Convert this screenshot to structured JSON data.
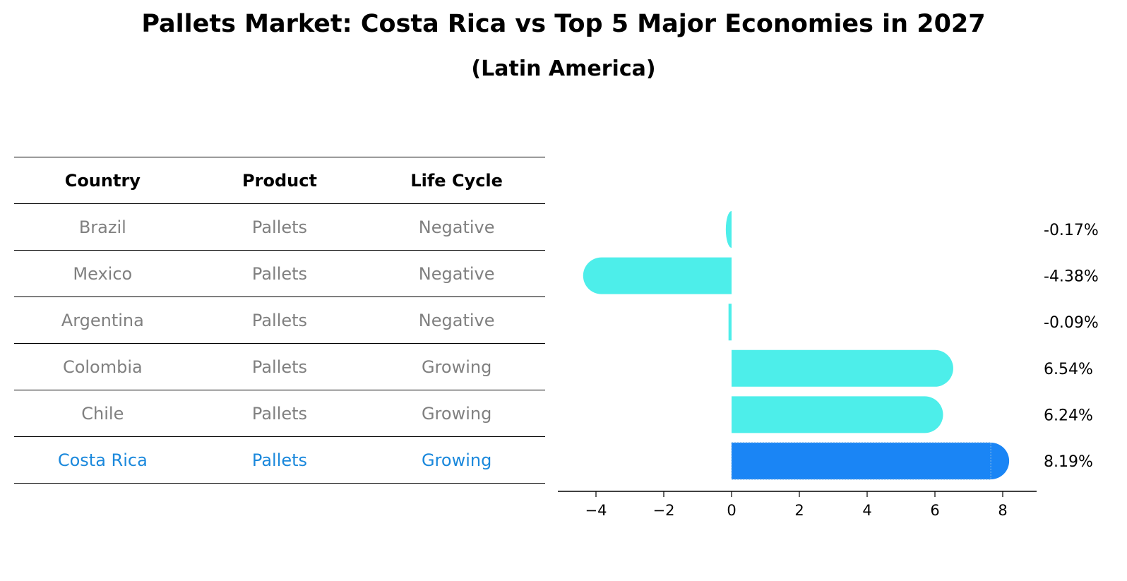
{
  "title": "Pallets Market: Costa Rica vs Top 5 Major Economies in 2027",
  "subtitle": "(Latin America)",
  "table": {
    "headers": [
      "Country",
      "Product",
      "Life Cycle"
    ],
    "rows": [
      [
        "Brazil",
        "Pallets",
        "Negative"
      ],
      [
        "Mexico",
        "Pallets",
        "Negative"
      ],
      [
        "Argentina",
        "Pallets",
        "Negative"
      ],
      [
        "Colombia",
        "Pallets",
        "Growing"
      ],
      [
        "Chile",
        "Pallets",
        "Growing"
      ],
      [
        "Costa Rica",
        "Pallets",
        "Growing"
      ]
    ]
  },
  "chart_data": {
    "type": "bar",
    "orientation": "horizontal",
    "categories": [
      "Brazil",
      "Mexico",
      "Argentina",
      "Colombia",
      "Chile",
      "Costa Rica"
    ],
    "values": [
      -0.17,
      -4.38,
      -0.09,
      6.54,
      6.24,
      8.19
    ],
    "value_labels": [
      "-0.17%",
      "-4.38%",
      "-0.09%",
      "6.54%",
      "6.24%",
      "8.19%"
    ],
    "highlight": "Costa Rica",
    "xlim": [
      -5,
      8.8
    ],
    "xticks": [
      -4,
      -2,
      0,
      2,
      4,
      6,
      8
    ],
    "xtick_labels": [
      "−4",
      "−2",
      "0",
      "2",
      "4",
      "6",
      "8"
    ],
    "colors": {
      "default": "#4deeea",
      "highlight": "#1a85f5"
    }
  }
}
